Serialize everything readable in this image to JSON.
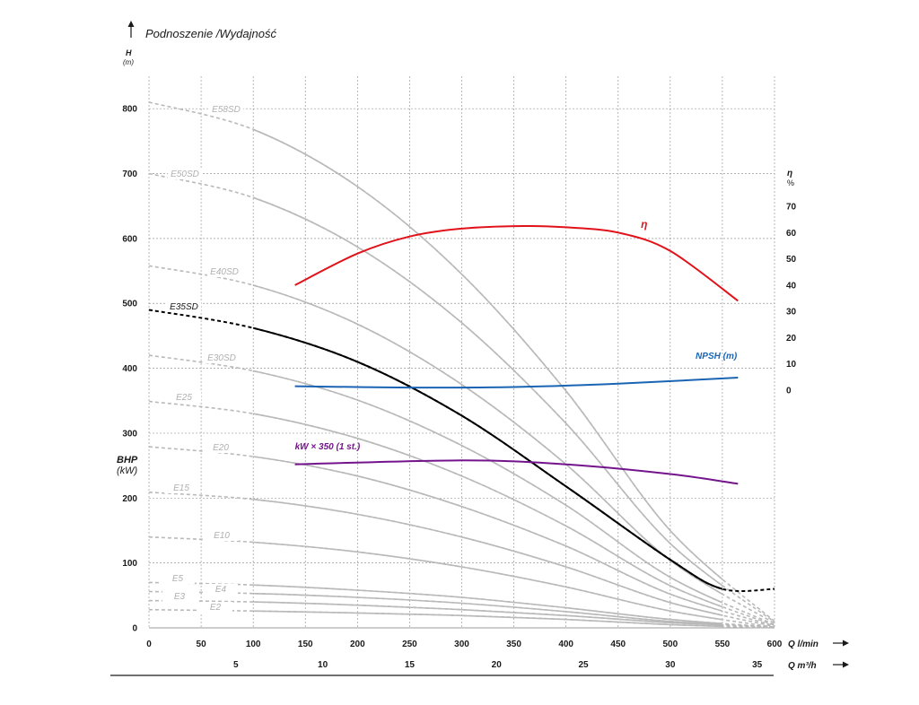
{
  "header": {
    "title": "Podnoszenie /Wydajność",
    "h_label": "H",
    "h_unit": "(m)",
    "bhp_label": "BHP",
    "bhp_unit": "(kW)",
    "eta_axis_label": "η",
    "eta_axis_unit": "%",
    "q_lmin_label": "Q l/min",
    "q_m3h_label": "Q m³/h"
  },
  "colors": {
    "grid": "#9a9a9a",
    "pump_curves": "#b9b9b9",
    "pump_labels": "#b0b0b0",
    "highlight_curve": "#000000",
    "efficiency": "#e2121b",
    "npsh": "#1a64b4",
    "power": "#74148c"
  },
  "chart_data": {
    "type": "line",
    "x_axis": {
      "label": "Q l/min",
      "range": [
        0,
        600
      ],
      "ticks": [
        0,
        50,
        100,
        150,
        200,
        250,
        300,
        350,
        400,
        450,
        500,
        550,
        600
      ]
    },
    "x2_axis": {
      "label": "Q m³/h",
      "ticks": [
        5,
        10,
        15,
        20,
        25,
        30,
        35
      ]
    },
    "y_axis": {
      "label": "H (m)",
      "range": [
        0,
        850
      ],
      "ticks": [
        0,
        100,
        200,
        300,
        400,
        500,
        600,
        700,
        800
      ]
    },
    "y2_axis": {
      "label": "η %",
      "range": [
        0,
        70
      ],
      "ticks": [
        0,
        10,
        20,
        30,
        40,
        50,
        60,
        70
      ]
    },
    "bhp_label": "BHP (kW)",
    "grid": true,
    "pump_curves": [
      {
        "name": "E58SD",
        "points": [
          [
            0,
            810
          ],
          [
            100,
            768
          ],
          [
            200,
            680
          ],
          [
            300,
            545
          ],
          [
            400,
            365
          ],
          [
            500,
            150
          ],
          [
            600,
            10
          ]
        ]
      },
      {
        "name": "E50SD",
        "points": [
          [
            0,
            700
          ],
          [
            100,
            663
          ],
          [
            200,
            587
          ],
          [
            300,
            470
          ],
          [
            400,
            315
          ],
          [
            500,
            130
          ],
          [
            600,
            9
          ]
        ]
      },
      {
        "name": "E40SD",
        "points": [
          [
            0,
            558
          ],
          [
            100,
            528
          ],
          [
            200,
            468
          ],
          [
            300,
            375
          ],
          [
            400,
            252
          ],
          [
            500,
            104
          ],
          [
            600,
            7
          ]
        ]
      },
      {
        "name": "E35SD",
        "points": [
          [
            0,
            490
          ],
          [
            100,
            462
          ],
          [
            200,
            410
          ],
          [
            300,
            327
          ],
          [
            400,
            218
          ],
          [
            500,
            105
          ],
          [
            550,
            60
          ],
          [
            600,
            60
          ]
        ]
      },
      {
        "name": "E30SD",
        "points": [
          [
            0,
            420
          ],
          [
            100,
            396
          ],
          [
            200,
            351
          ],
          [
            300,
            281
          ],
          [
            400,
            189
          ],
          [
            500,
            78
          ],
          [
            600,
            5
          ]
        ]
      },
      {
        "name": "E25",
        "points": [
          [
            0,
            349
          ],
          [
            100,
            330
          ],
          [
            200,
            292
          ],
          [
            300,
            234
          ],
          [
            400,
            157
          ],
          [
            500,
            65
          ],
          [
            600,
            4
          ]
        ]
      },
      {
        "name": "E20",
        "points": [
          [
            0,
            279
          ],
          [
            100,
            264
          ],
          [
            200,
            234
          ],
          [
            300,
            187
          ],
          [
            400,
            126
          ],
          [
            500,
            52
          ],
          [
            600,
            3
          ]
        ]
      },
      {
        "name": "E15",
        "points": [
          [
            0,
            209
          ],
          [
            100,
            198
          ],
          [
            200,
            175
          ],
          [
            300,
            140
          ],
          [
            400,
            94
          ],
          [
            500,
            39
          ],
          [
            600,
            2
          ]
        ]
      },
      {
        "name": "E10",
        "points": [
          [
            0,
            140
          ],
          [
            100,
            132
          ],
          [
            200,
            117
          ],
          [
            300,
            94
          ],
          [
            400,
            63
          ],
          [
            500,
            26
          ],
          [
            600,
            1
          ]
        ]
      },
      {
        "name": "E5",
        "points": [
          [
            0,
            70
          ],
          [
            100,
            66
          ],
          [
            200,
            58
          ],
          [
            300,
            47
          ],
          [
            400,
            31
          ],
          [
            500,
            13
          ],
          [
            600,
            1
          ]
        ]
      },
      {
        "name": "E4",
        "points": [
          [
            0,
            56
          ],
          [
            100,
            53
          ],
          [
            200,
            47
          ],
          [
            300,
            38
          ],
          [
            400,
            25
          ],
          [
            500,
            10
          ],
          [
            600,
            1
          ]
        ]
      },
      {
        "name": "E3",
        "points": [
          [
            0,
            42
          ],
          [
            100,
            40
          ],
          [
            200,
            35
          ],
          [
            300,
            28
          ],
          [
            400,
            19
          ],
          [
            500,
            8
          ],
          [
            600,
            1
          ]
        ]
      },
      {
        "name": "E2",
        "points": [
          [
            0,
            28
          ],
          [
            100,
            26
          ],
          [
            200,
            23
          ],
          [
            300,
            19
          ],
          [
            400,
            13
          ],
          [
            500,
            5
          ],
          [
            600,
            0
          ]
        ]
      }
    ],
    "efficiency_curve": {
      "name": "η",
      "unit": "%",
      "points": [
        [
          140,
          40
        ],
        [
          200,
          52
        ],
        [
          250,
          58.5
        ],
        [
          300,
          61.5
        ],
        [
          360,
          62.5
        ],
        [
          400,
          62
        ],
        [
          450,
          60
        ],
        [
          500,
          53
        ],
        [
          565,
          34
        ]
      ]
    },
    "npsh_curve": {
      "name": "NPSH (m)",
      "points": [
        [
          140,
          1.5
        ],
        [
          250,
          1
        ],
        [
          350,
          1.2
        ],
        [
          450,
          2.5
        ],
        [
          565,
          4.8
        ]
      ]
    },
    "power_curve": {
      "name": "kW × 350 (1 st.)",
      "points": [
        [
          140,
          252
        ],
        [
          300,
          258
        ],
        [
          400,
          252
        ],
        [
          500,
          237
        ],
        [
          565,
          222
        ]
      ]
    }
  }
}
